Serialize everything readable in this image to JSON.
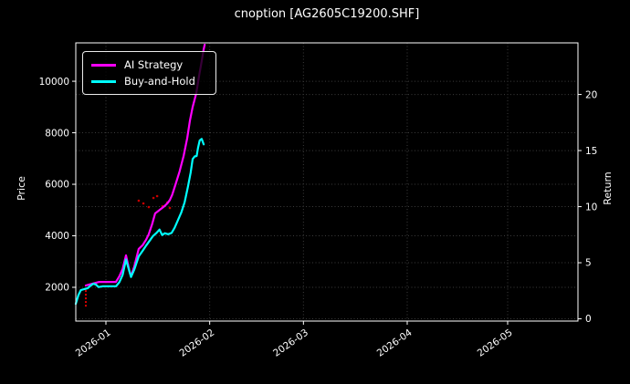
{
  "title": "cnoption [AG2605C19200.SHF]",
  "colors": {
    "background": "#000000",
    "foreground": "#ffffff",
    "grid": "#3c3c3c",
    "ai_strategy": "#ff00ff",
    "buy_and_hold": "#00ffff",
    "red_marks": "#dd0000"
  },
  "chart_data": {
    "type": "line",
    "title": "cnoption [AG2605C19200.SHF]",
    "xlabel": "",
    "ylabel_left": "Price",
    "ylabel_right": "Return",
    "grid": true,
    "background": "#000000",
    "x_axis": {
      "tick_labels": [
        "2026-01",
        "2026-02",
        "2026-03",
        "2026-04",
        "2026-05"
      ],
      "tick_days": [
        9,
        40,
        68,
        99,
        129
      ],
      "xlim_days": [
        0,
        150
      ],
      "label_rotation_deg": 35
    },
    "y_axis_left": {
      "label": "Price",
      "ticks": [
        2000,
        4000,
        6000,
        8000,
        10000
      ],
      "ylim": [
        690,
        11490
      ]
    },
    "y_axis_right": {
      "label": "Return",
      "ticks": [
        0,
        5,
        10,
        15,
        20
      ],
      "ylim": [
        -0.2,
        24.6
      ]
    },
    "legend": {
      "position": "upper left",
      "entries": [
        {
          "label": "AI Strategy",
          "color": "#ff00ff"
        },
        {
          "label": "Buy-and-Hold",
          "color": "#00ffff"
        }
      ]
    },
    "series": [
      {
        "name": "AI Strategy",
        "color": "#ff00ff",
        "axis": "left",
        "points": [
          [
            3,
            2070
          ],
          [
            4,
            2110
          ],
          [
            7,
            2210
          ],
          [
            12,
            2210
          ],
          [
            13,
            2430
          ],
          [
            14,
            2710
          ],
          [
            15,
            3240
          ],
          [
            16,
            2640
          ],
          [
            16.5,
            2430
          ],
          [
            17.5,
            2820
          ],
          [
            18.8,
            3490
          ],
          [
            20,
            3640
          ],
          [
            21,
            3850
          ],
          [
            21.8,
            4060
          ],
          [
            22.8,
            4450
          ],
          [
            23.7,
            4870
          ],
          [
            25,
            5000
          ],
          [
            26.2,
            5120
          ],
          [
            27.3,
            5250
          ],
          [
            28.1,
            5390
          ],
          [
            28.8,
            5590
          ],
          [
            29.8,
            6000
          ],
          [
            31,
            6500
          ],
          [
            32.2,
            7100
          ],
          [
            33.3,
            7800
          ],
          [
            34.1,
            8470
          ],
          [
            34.9,
            9000
          ],
          [
            36,
            9540
          ],
          [
            36.8,
            10180
          ],
          [
            37.6,
            10780
          ],
          [
            38.2,
            11245
          ],
          [
            38.5,
            11420
          ]
        ]
      },
      {
        "name": "Buy-and-Hold",
        "color": "#00ffff",
        "axis": "left",
        "points": [
          [
            0,
            1360
          ],
          [
            0.8,
            1700
          ],
          [
            1.5,
            1890
          ],
          [
            2.5,
            1930
          ],
          [
            3.5,
            1960
          ],
          [
            4.5,
            2070
          ],
          [
            5.2,
            2140
          ],
          [
            6,
            2110
          ],
          [
            6.8,
            2010
          ],
          [
            8,
            2040
          ],
          [
            12,
            2040
          ],
          [
            13,
            2200
          ],
          [
            14,
            2480
          ],
          [
            15,
            3080
          ],
          [
            16,
            2620
          ],
          [
            16.5,
            2400
          ],
          [
            17.5,
            2700
          ],
          [
            18.8,
            3200
          ],
          [
            20,
            3420
          ],
          [
            21,
            3620
          ],
          [
            22,
            3800
          ],
          [
            23,
            3980
          ],
          [
            24,
            4100
          ],
          [
            25,
            4240
          ],
          [
            25.8,
            4030
          ],
          [
            26.6,
            4100
          ],
          [
            27.6,
            4060
          ],
          [
            28.6,
            4110
          ],
          [
            29.5,
            4310
          ],
          [
            30.5,
            4600
          ],
          [
            31.5,
            4900
          ],
          [
            32.5,
            5300
          ],
          [
            33.5,
            5900
          ],
          [
            34.3,
            6450
          ],
          [
            34.9,
            6980
          ],
          [
            35.5,
            7080
          ],
          [
            36.1,
            7100
          ],
          [
            36.5,
            7400
          ],
          [
            37,
            7700
          ],
          [
            37.6,
            7760
          ],
          [
            38.2,
            7550
          ]
        ]
      }
    ],
    "annotations": {
      "red_dashed_segment": {
        "color": "#dd0000",
        "points": [
          [
            3,
            1250
          ],
          [
            3,
            1900
          ]
        ]
      },
      "red_dots": [
        [
          18.8,
          5364
        ],
        [
          20.2,
          5258
        ],
        [
          21.8,
          5116
        ],
        [
          23.2,
          5470
        ],
        [
          24.3,
          5541
        ],
        [
          25.9,
          5152
        ],
        [
          27.3,
          5293
        ],
        [
          28.1,
          5081
        ]
      ]
    }
  }
}
